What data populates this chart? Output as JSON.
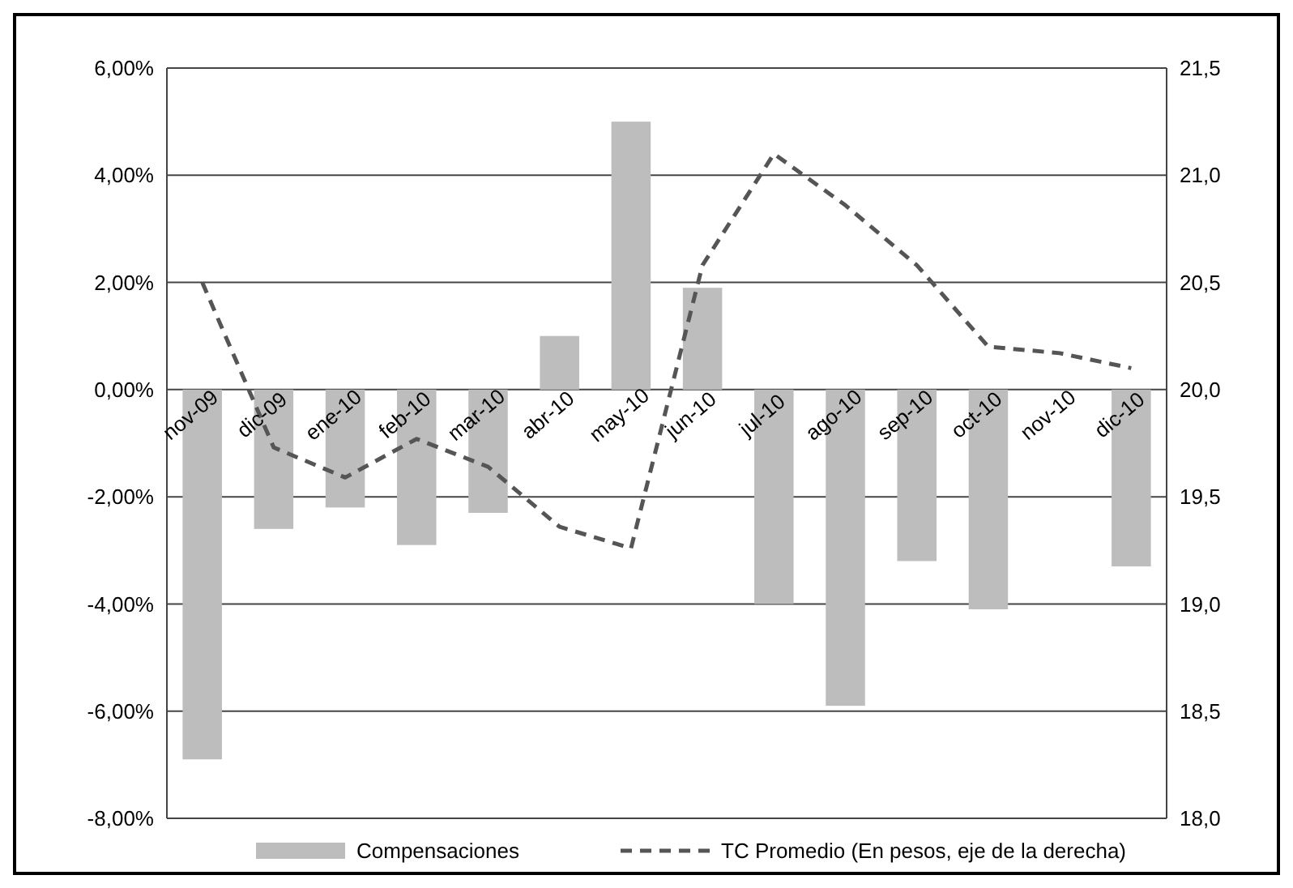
{
  "chart_data": {
    "type": "bar",
    "categories": [
      "nov-09",
      "dic-09",
      "ene-10",
      "feb-10",
      "mar-10",
      "abr-10",
      "may-10",
      "jun-10",
      "jul-10",
      "ago-10",
      "sep-10",
      "oct-10",
      "nov-10",
      "dic-10"
    ],
    "series": [
      {
        "name": "Compensaciones",
        "color": "#bdbdbd",
        "values": [
          -6.9,
          -2.6,
          -2.2,
          -2.9,
          -2.3,
          1.0,
          5.0,
          1.9,
          -4.0,
          -5.9,
          -3.2,
          -4.1,
          0,
          -3.3
        ]
      },
      {
        "name": "TC Promedio (En pesos, eje de la derecha)",
        "type": "line",
        "axis": "y2",
        "color": "#555555",
        "line_style": "dashed",
        "values": [
          20.5,
          19.73,
          19.59,
          19.77,
          19.64,
          19.36,
          19.26,
          20.58,
          21.1,
          20.86,
          20.58,
          20.2,
          20.17,
          20.1
        ]
      }
    ],
    "ylim": [
      -8,
      6
    ],
    "yticks": [
      {
        "value": -8,
        "label": "-8,00%"
      },
      {
        "value": -6,
        "label": "-6,00%"
      },
      {
        "value": -4,
        "label": "-4,00%"
      },
      {
        "value": -2,
        "label": "-2,00%"
      },
      {
        "value": 0,
        "label": "0,00%"
      },
      {
        "value": 2,
        "label": "2,00%"
      },
      {
        "value": 4,
        "label": "4,00%"
      },
      {
        "value": 6,
        "label": "6,00%"
      }
    ],
    "y2lim": [
      18,
      21.5
    ],
    "y2ticks": [
      {
        "value": 18,
        "label": "18,0"
      },
      {
        "value": 18.5,
        "label": "18,5"
      },
      {
        "value": 19,
        "label": "19,0"
      },
      {
        "value": 19.5,
        "label": "19,5"
      },
      {
        "value": 20,
        "label": "20,0"
      },
      {
        "value": 20.5,
        "label": "20,5"
      },
      {
        "value": 21,
        "label": "21,0"
      },
      {
        "value": 21.5,
        "label": "21,5"
      }
    ],
    "grid": "y",
    "legend": "bottom"
  }
}
